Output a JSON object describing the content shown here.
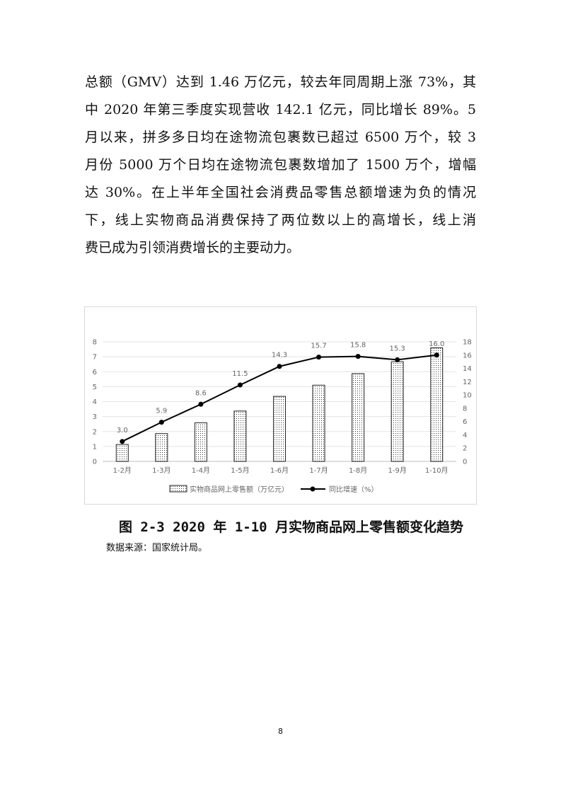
{
  "body_text": {
    "lines": [
      "总额（GMV）达到 1.46 万亿元，较去年同周期上涨 73%，其",
      "中 2020 年第三季度实现营收 142.1 亿元，同比增长 89%。5",
      "月以来，拼多多日均在途物流包裹数已超过 6500 万个，较 3",
      "月份 5000 万个日均在途物流包裹数增加了 1500 万个，增幅",
      "达 30%。在上半年全国社会消费品零售总额增速为负的情况",
      "下，线上实物商品消费保持了两位数以上的高增长，线上消",
      "费已成为引领消费增长的主要动力。"
    ]
  },
  "chart_data": {
    "type": "bar+line",
    "categories": [
      "1-2月",
      "1-3月",
      "1-4月",
      "1-5月",
      "1-6月",
      "1-7月",
      "1-8月",
      "1-9月",
      "1-10月"
    ],
    "series": [
      {
        "name": "实物商品网上零售额（万亿元）",
        "type": "bar",
        "axis": "left",
        "values": [
          1.13,
          1.86,
          2.58,
          3.37,
          4.35,
          5.1,
          5.87,
          6.67,
          7.6
        ],
        "fill": "dotted pattern"
      },
      {
        "name": "同比增速（%）",
        "type": "line",
        "axis": "right",
        "values": [
          3.0,
          5.9,
          8.6,
          11.5,
          14.3,
          15.7,
          15.8,
          15.3,
          16.0
        ],
        "data_labels": [
          "3.0",
          "5.9",
          "8.6",
          "11.5",
          "14.3",
          "15.7",
          "15.8",
          "15.3",
          "16.0"
        ],
        "color": "#000000"
      }
    ],
    "left_axis": {
      "range": [
        0,
        8
      ],
      "ticks": [
        "0",
        "1",
        "2",
        "3",
        "4",
        "5",
        "6",
        "7",
        "8"
      ]
    },
    "right_axis": {
      "range": [
        0,
        18
      ],
      "ticks": [
        "0",
        "2",
        "4",
        "6",
        "8",
        "10",
        "12",
        "14",
        "16",
        "18"
      ]
    },
    "grid": "horizontal",
    "legend_placement": "bottom"
  },
  "caption": "图 2-3 2020 年 1-10 月实物商品网上零售额变化趋势",
  "source": "数据来源：国家统计局。",
  "page_number": "8"
}
